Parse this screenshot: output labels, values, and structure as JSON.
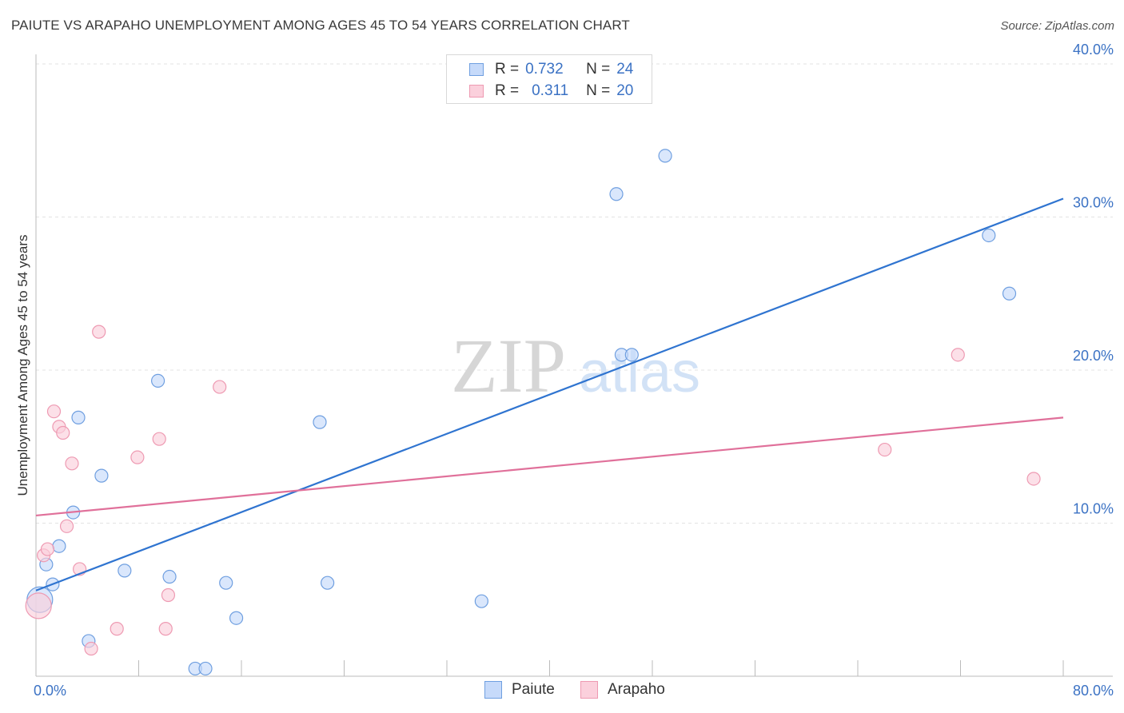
{
  "header": {
    "title": "PAIUTE VS ARAPAHO UNEMPLOYMENT AMONG AGES 45 TO 54 YEARS CORRELATION CHART",
    "source": "Source: ZipAtlas.com"
  },
  "watermark": {
    "zip": "ZIP",
    "atlas": "atlas"
  },
  "legend": {
    "rows": [
      {
        "r_label": "R =",
        "r_value": "0.732",
        "n_label": "N =",
        "n_value": "24"
      },
      {
        "r_label": "R =",
        "r_value": "0.311",
        "n_label": "N =",
        "n_value": "20"
      }
    ]
  },
  "colors": {
    "paiute_fill": "#c6dafa",
    "paiute_stroke": "#6f9fe0",
    "paiute_line": "#2f74d0",
    "arapaho_fill": "#fbd0dc",
    "arapaho_stroke": "#ee9ab2",
    "arapaho_line": "#e0709a",
    "axis_label": "#3b72c4",
    "grid": "#e3e3e3"
  },
  "chart_data": {
    "type": "scatter",
    "title": "PAIUTE VS ARAPAHO UNEMPLOYMENT AMONG AGES 45 TO 54 YEARS CORRELATION CHART",
    "xlabel": "",
    "ylabel": "Unemployment Among Ages 45 to 54 years",
    "xlim": [
      0,
      80
    ],
    "ylim": [
      0,
      40
    ],
    "x_tick_labels": [
      "0.0%",
      "80.0%"
    ],
    "y_ticks": [
      10,
      20,
      30,
      40
    ],
    "y_tick_labels": [
      "10.0%",
      "20.0%",
      "30.0%",
      "40.0%"
    ],
    "grid": true,
    "legend_position": "top-center",
    "series": [
      {
        "name": "Paiute",
        "trend": {
          "x": [
            0,
            80
          ],
          "y": [
            5.6,
            31.2
          ]
        },
        "points": [
          {
            "x": 0.3,
            "y": 5.0,
            "big": true
          },
          {
            "x": 0.8,
            "y": 7.3
          },
          {
            "x": 1.3,
            "y": 6.0
          },
          {
            "x": 1.8,
            "y": 8.5
          },
          {
            "x": 2.9,
            "y": 10.7
          },
          {
            "x": 3.3,
            "y": 16.9
          },
          {
            "x": 4.1,
            "y": 2.3
          },
          {
            "x": 5.1,
            "y": 13.1
          },
          {
            "x": 6.9,
            "y": 6.9
          },
          {
            "x": 9.5,
            "y": 19.3
          },
          {
            "x": 10.4,
            "y": 6.5
          },
          {
            "x": 12.4,
            "y": 0.5
          },
          {
            "x": 13.2,
            "y": 0.5
          },
          {
            "x": 14.8,
            "y": 6.1
          },
          {
            "x": 15.6,
            "y": 3.8
          },
          {
            "x": 22.1,
            "y": 16.6
          },
          {
            "x": 22.7,
            "y": 6.1
          },
          {
            "x": 34.7,
            "y": 4.9
          },
          {
            "x": 45.2,
            "y": 31.5
          },
          {
            "x": 45.6,
            "y": 21.0
          },
          {
            "x": 46.4,
            "y": 21.0
          },
          {
            "x": 49.0,
            "y": 34.0
          },
          {
            "x": 74.2,
            "y": 28.8
          },
          {
            "x": 75.8,
            "y": 25.0
          }
        ]
      },
      {
        "name": "Arapaho",
        "trend": {
          "x": [
            0,
            80
          ],
          "y": [
            10.5,
            16.9
          ]
        },
        "points": [
          {
            "x": 0.2,
            "y": 4.6,
            "big": true
          },
          {
            "x": 0.6,
            "y": 7.9
          },
          {
            "x": 0.9,
            "y": 8.3
          },
          {
            "x": 1.4,
            "y": 17.3
          },
          {
            "x": 1.8,
            "y": 16.3
          },
          {
            "x": 2.1,
            "y": 15.9
          },
          {
            "x": 2.4,
            "y": 9.8
          },
          {
            "x": 2.8,
            "y": 13.9
          },
          {
            "x": 3.4,
            "y": 7.0
          },
          {
            "x": 4.3,
            "y": 1.8
          },
          {
            "x": 4.9,
            "y": 22.5
          },
          {
            "x": 6.3,
            "y": 3.1
          },
          {
            "x": 7.9,
            "y": 14.3
          },
          {
            "x": 9.6,
            "y": 15.5
          },
          {
            "x": 10.1,
            "y": 3.1
          },
          {
            "x": 10.3,
            "y": 5.3
          },
          {
            "x": 14.3,
            "y": 18.9
          },
          {
            "x": 66.1,
            "y": 14.8
          },
          {
            "x": 71.8,
            "y": 21.0
          },
          {
            "x": 77.7,
            "y": 12.9
          }
        ]
      }
    ]
  },
  "bottom_legend": {
    "items": [
      "Paiute",
      "Arapaho"
    ]
  }
}
